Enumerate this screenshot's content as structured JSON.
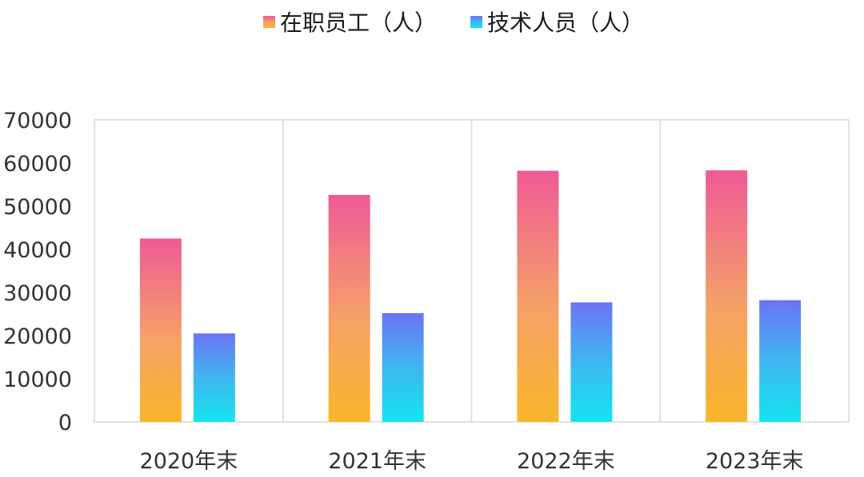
{
  "chart_data": {
    "type": "bar",
    "categories": [
      "2020年末",
      "2021年末",
      "2022年末",
      "2023年末"
    ],
    "series": [
      {
        "name": "在职员工（人）",
        "values": [
          42500,
          52600,
          58200,
          58300
        ],
        "gradient": [
          "#ef5a96",
          "#f5a268",
          "#f8b62a"
        ]
      },
      {
        "name": "技术人员（人）",
        "values": [
          20500,
          25200,
          27700,
          28200
        ],
        "gradient": [
          "#6b74f5",
          "#3fb7f0",
          "#15e4ee"
        ]
      }
    ],
    "y_ticks": [
      "0",
      "10000",
      "20000",
      "30000",
      "40000",
      "50000",
      "60000",
      "70000"
    ],
    "ylim": [
      0,
      70000
    ],
    "grid": "vertical category separators",
    "legend_position": "top-center",
    "title": "",
    "xlabel": "",
    "ylabel": ""
  },
  "colors": {
    "border": "#d9d9d9",
    "text": "#333333"
  }
}
